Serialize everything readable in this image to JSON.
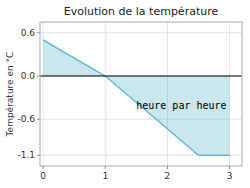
{
  "chart_data": {
    "type": "area",
    "title": "Evolution de la température",
    "y_label": "Température en °C",
    "annotation": "heure par heure",
    "x": [
      0,
      1,
      2.5,
      3
    ],
    "values": [
      0.5,
      0.0,
      -1.1,
      -1.1
    ],
    "color": "#66bbcc",
    "xlim": [
      -0.05,
      3.2
    ],
    "ylim": [
      -1.25,
      0.75
    ],
    "xticks": [
      0,
      1,
      2,
      3
    ],
    "yticks": [
      -1.1,
      -0.6,
      {
        "value": 0.0,
        "label": "0.0"
      },
      0.6
    ],
    "grid": true
  }
}
